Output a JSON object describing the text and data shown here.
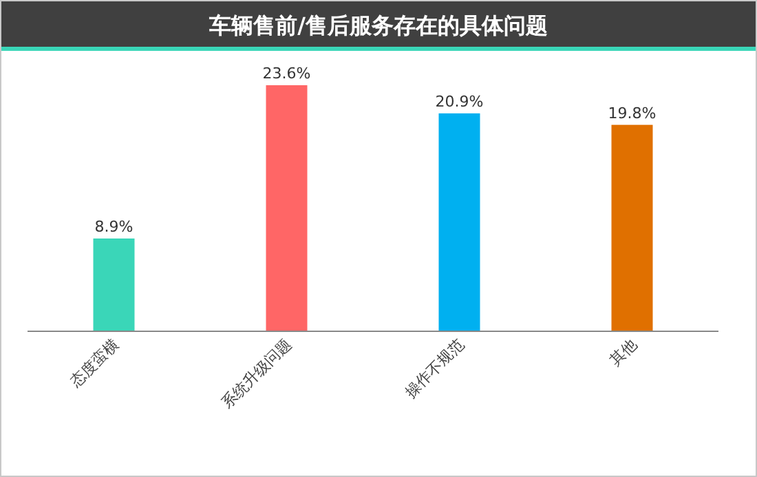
{
  "chart_data": {
    "type": "bar",
    "title": "车辆售前/售后服务存在的具体问题",
    "categories": [
      "态度蛮横",
      "系统升级问题",
      "操作不规范",
      "其他"
    ],
    "values": [
      8.9,
      23.6,
      20.9,
      19.8
    ],
    "colors": [
      "#3ad6b8",
      "#ff6666",
      "#00b0f0",
      "#e07000"
    ],
    "value_labels": [
      "8.9%",
      "23.6%",
      "20.9%",
      "19.8%"
    ]
  }
}
